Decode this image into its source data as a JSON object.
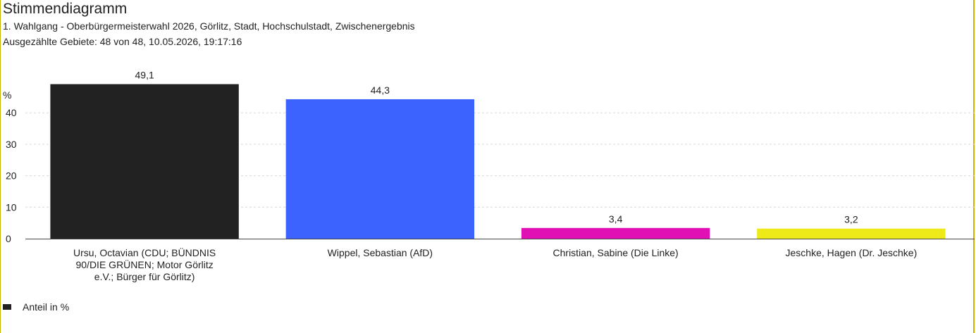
{
  "header": {
    "title": "Stimmendiagramm",
    "subtitle_line1": "1. Wahlgang - Oberbürgermeisterwahl 2026, Görlitz, Stadt, Hochschulstadt, Zwischenergebnis",
    "subtitle_line2": "Ausgezählte Gebiete: 48 von 48, 10.05.2026, 19:17:16"
  },
  "legend": {
    "label": "Anteil in %",
    "color": "#222222"
  },
  "chart_data": {
    "type": "bar",
    "title": "Stimmendiagramm",
    "ylabel": "%",
    "ylim": [
      0,
      50
    ],
    "yticks": [
      0,
      10,
      20,
      30,
      40
    ],
    "grid": true,
    "legend_position": "bottom-left",
    "categories": [
      [
        "Ursu, Octavian (CDU; BÜNDNIS",
        "90/DIE GRÜNEN; Motor Görlitz",
        "e.V.; Bürger für Görlitz)"
      ],
      [
        "Wippel, Sebastian (AfD)"
      ],
      [
        "Christian, Sabine (Die Linke)"
      ],
      [
        "Jeschke, Hagen (Dr. Jeschke)"
      ]
    ],
    "values": [
      49.1,
      44.3,
      3.4,
      3.2
    ],
    "value_labels": [
      "49,1",
      "44,3",
      "3,4",
      "3,2"
    ],
    "colors": [
      "#222222",
      "#3d63ff",
      "#e010b4",
      "#eeea1a"
    ],
    "series": [
      {
        "name": "Anteil in %",
        "values": [
          49.1,
          44.3,
          3.4,
          3.2
        ]
      }
    ]
  }
}
